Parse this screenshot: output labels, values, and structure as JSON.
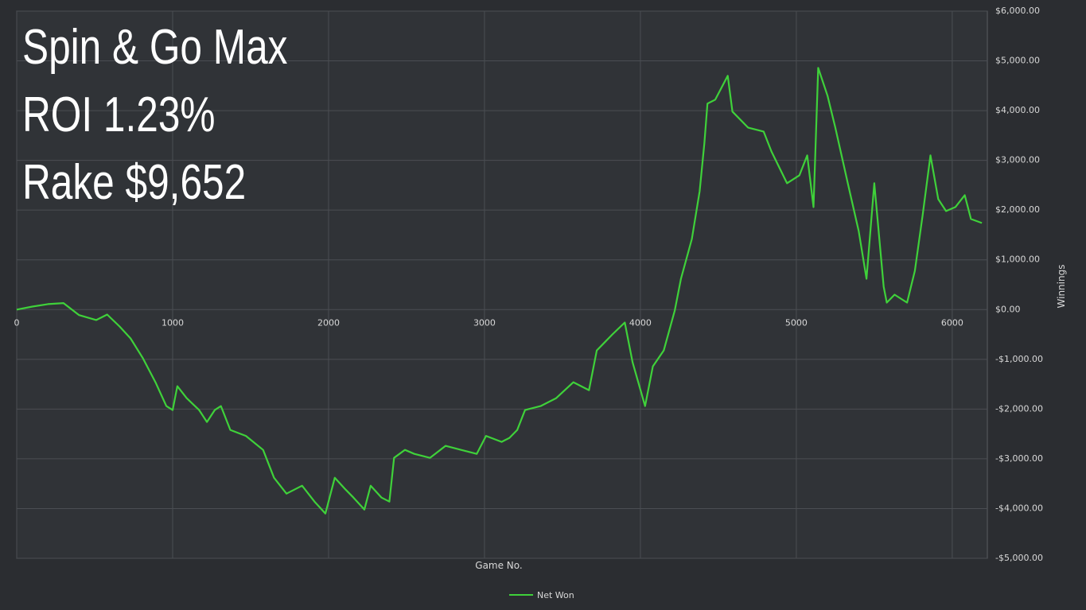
{
  "chart_data": {
    "type": "line",
    "annotations": [
      "Spin & Go Max",
      "ROI 1.23%",
      "Rake $9,652"
    ],
    "x_label": "Game No.",
    "y_label": "Winnings",
    "xlim": [
      0,
      6225
    ],
    "xticks": [
      0,
      1000,
      2000,
      3000,
      4000,
      5000,
      6000
    ],
    "ylim": [
      -5000,
      6000
    ],
    "yticks": [
      {
        "value": -5000,
        "label": "-$5,000.00"
      },
      {
        "value": -4000,
        "label": "-$4,000.00"
      },
      {
        "value": -3000,
        "label": "-$3,000.00"
      },
      {
        "value": -2000,
        "label": "-$2,000.00"
      },
      {
        "value": -1000,
        "label": "-$1,000.00"
      },
      {
        "value": 0,
        "label": "$0.00"
      },
      {
        "value": 1000,
        "label": "$1,000.00"
      },
      {
        "value": 2000,
        "label": "$2,000.00"
      },
      {
        "value": 3000,
        "label": "$3,000.00"
      },
      {
        "value": 4000,
        "label": "$4,000.00"
      },
      {
        "value": 5000,
        "label": "$5,000.00"
      },
      {
        "value": 6000,
        "label": "$6,000.00"
      }
    ],
    "grid": true,
    "legend": "bottom",
    "x": [
      0,
      100,
      200,
      300,
      400,
      510,
      580,
      660,
      730,
      810,
      890,
      960,
      1000,
      1030,
      1090,
      1170,
      1220,
      1270,
      1310,
      1370,
      1470,
      1580,
      1650,
      1730,
      1830,
      1910,
      1980,
      2040,
      2110,
      2160,
      2230,
      2270,
      2340,
      2390,
      2420,
      2490,
      2550,
      2650,
      2750,
      2850,
      2950,
      3010,
      3110,
      3160,
      3210,
      3260,
      3360,
      3460,
      3570,
      3670,
      3720,
      3820,
      3900,
      3950,
      4030,
      4080,
      4150,
      4220,
      4260,
      4330,
      4380,
      4410,
      4430,
      4480,
      4560,
      4590,
      4690,
      4790,
      4840,
      4940,
      5020,
      5070,
      5110,
      5140,
      5200,
      5250,
      5330,
      5400,
      5450,
      5500,
      5560,
      5580,
      5630,
      5710,
      5760,
      5810,
      5860,
      5910,
      5960,
      6020,
      6080,
      6120,
      6190
    ],
    "series": [
      {
        "name": "Net Won",
        "color": "#3fd13a",
        "values": [
          0,
          60,
          110,
          130,
          -110,
          -210,
          -100,
          -340,
          -580,
          -980,
          -1460,
          -1940,
          -2020,
          -1540,
          -1780,
          -2020,
          -2260,
          -2020,
          -1940,
          -2420,
          -2540,
          -2820,
          -3380,
          -3700,
          -3540,
          -3860,
          -4100,
          -3380,
          -3620,
          -3780,
          -4020,
          -3540,
          -3780,
          -3860,
          -2980,
          -2820,
          -2900,
          -2980,
          -2740,
          -2820,
          -2900,
          -2540,
          -2660,
          -2580,
          -2420,
          -2020,
          -1940,
          -1780,
          -1460,
          -1620,
          -820,
          -500,
          -260,
          -1060,
          -1940,
          -1140,
          -820,
          -20,
          620,
          1420,
          2380,
          3340,
          4140,
          4220,
          4700,
          3980,
          3660,
          3580,
          3180,
          2540,
          2700,
          3100,
          2060,
          4860,
          4300,
          3660,
          2540,
          1580,
          620,
          2540,
          460,
          140,
          300,
          140,
          780,
          1900,
          3100,
          2220,
          1980,
          2060,
          2300,
          1820,
          1740
        ]
      }
    ]
  }
}
